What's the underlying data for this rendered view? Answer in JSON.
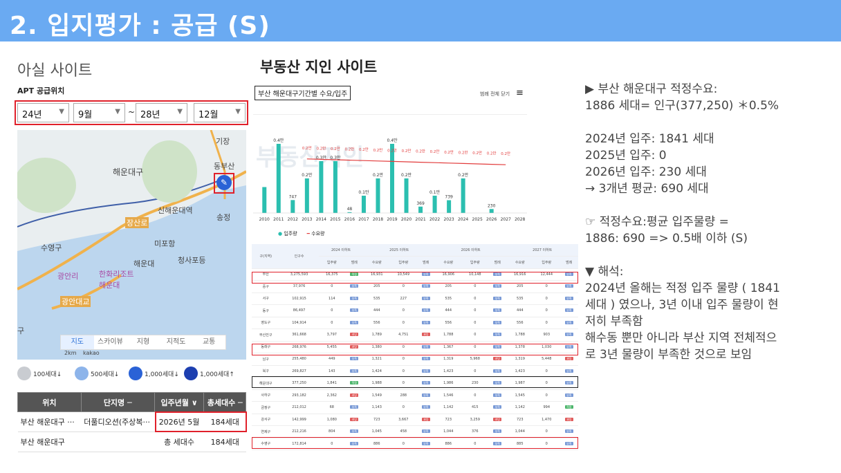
{
  "header": {
    "title": "2. 입지평가 : 공급 (S)"
  },
  "left": {
    "title": "아실 사이트",
    "sub": "APT 공급위치",
    "filters": {
      "from_year": "24년",
      "from_month": "9월",
      "sep": "~",
      "to_year": "28년",
      "to_month": "12월"
    },
    "map": {
      "labels": [
        "해운대구",
        "신해운대역",
        "장산로",
        "송정",
        "미포항",
        "수영구",
        "해운대",
        "청사포등",
        "한화리조트\n해운대",
        "광안리",
        "광안대교",
        "해운대",
        "동부산",
        "기장",
        "구"
      ],
      "tabs": [
        "지도",
        "스카이뷰",
        "지형",
        "지적도",
        "교통"
      ],
      "scale": "2km",
      "kakao": "kakao"
    },
    "legend": [
      "100세대↓",
      "500세대↓",
      "1,000세대↓",
      "1,000세대↑"
    ],
    "table": {
      "headers": [
        "위치",
        "단지명 ─",
        "입주년월 ∨",
        "총세대수 ─"
      ],
      "rows": [
        [
          "부산 해운대구 ···",
          "더풀디오션(주상복···",
          "2026년 5월",
          "184세대"
        ],
        [
          "부산 해운대구",
          "",
          "총 세대수",
          "184세대"
        ]
      ]
    }
  },
  "mid": {
    "title": "부동산 지인 사이트",
    "chart_title": "부산 해운대구기간별 수요/입주",
    "menu": "범례 전체 닫기",
    "watermark": "부동산지인",
    "chart_data": {
      "type": "bar",
      "categories": [
        "2010",
        "2011",
        "2012",
        "2013",
        "2014",
        "2015",
        "2016",
        "2017",
        "2018",
        "2019",
        "2020",
        "2021",
        "2022",
        "2023",
        "2024",
        "2025",
        "2026",
        "2027",
        "2028"
      ],
      "series": [
        {
          "name": "입주량",
          "values": [
            0.15,
            0.4,
            747,
            0.2,
            0.3,
            0.3,
            48,
            0.1,
            0.2,
            0.4,
            0.2,
            369,
            0.1,
            739,
            0.2,
            0,
            230,
            0,
            0
          ]
        },
        {
          "name": "수요량",
          "values": [
            null,
            null,
            null,
            0.2,
            0.2,
            0.2,
            0.2,
            0.2,
            0.2,
            0.2,
            0.2,
            0.2,
            0.2,
            0.2,
            0.2,
            0.2,
            0.2,
            0.2,
            null
          ]
        }
      ],
      "bar_labels": [
        "",
        "0.4만",
        "747",
        "0.2만",
        "0.3만",
        "0.3만",
        "48",
        "0.1만",
        "0.2만",
        "0.4만",
        "0.2만",
        "369",
        "0.1만",
        "739",
        "0.2만",
        "",
        "230",
        "",
        ""
      ],
      "line_labels": [
        "",
        "",
        "",
        "0.2만",
        "0.2만",
        "0.2만",
        "0.2만",
        "0.2만",
        "0.2만",
        "0.2만",
        "0.2만",
        "0.2만",
        "0.2만",
        "0.2만",
        "0.2만",
        "0.2만",
        "0.2만",
        "0.2만",
        ""
      ]
    },
    "region_table": {
      "group_headers": [
        "구(지역)",
        "인구수",
        "2024 이하트",
        "2025 이하트",
        "2026 이하트",
        "2027 이하트"
      ],
      "sub_headers": [
        "입주량",
        "범례",
        "수요량",
        "입주량",
        "범례",
        "수요량",
        "입주량",
        "범례",
        "수요량",
        "입주량",
        "범례"
      ],
      "rows": [
        [
          "부산",
          "3,275,593",
          "16,375",
          "적정",
          "16,931",
          "10,549",
          "부족",
          "16,906",
          "10,148",
          "부족",
          "16,916",
          "12,444",
          "부족"
        ],
        [
          "중구",
          "37,976",
          "0",
          "부족",
          "205",
          "0",
          "부족",
          "205",
          "0",
          "부족",
          "205",
          "0",
          "부족"
        ],
        [
          "서구",
          "102,915",
          "114",
          "부족",
          "535",
          "227",
          "부족",
          "535",
          "0",
          "부족",
          "535",
          "0",
          "부족"
        ],
        [
          "동구",
          "86,497",
          "0",
          "부족",
          "444",
          "0",
          "부족",
          "444",
          "0",
          "부족",
          "444",
          "0",
          "부족"
        ],
        [
          "영도구",
          "104,914",
          "0",
          "부족",
          "556",
          "0",
          "부족",
          "556",
          "0",
          "부족",
          "556",
          "0",
          "부족"
        ],
        [
          "부산진구",
          "361,668",
          "3,797",
          "과잉",
          "1,789",
          "4,751",
          "과잉",
          "1,788",
          "0",
          "부족",
          "1,788",
          "903",
          "부족"
        ],
        [
          "동래구",
          "268,976",
          "5,455",
          "과잉",
          "1,380",
          "0",
          "부족",
          "1,367",
          "0",
          "부족",
          "1,378",
          "1,030",
          "부족"
        ],
        [
          "남구",
          "255,480",
          "449",
          "부족",
          "1,321",
          "0",
          "부족",
          "1,319",
          "5,968",
          "과잉",
          "1,319",
          "5,448",
          "과잉"
        ],
        [
          "북구",
          "269,827",
          "143",
          "부족",
          "1,424",
          "0",
          "부족",
          "1,423",
          "0",
          "부족",
          "1,423",
          "0",
          "부족"
        ],
        [
          "해운대구",
          "377,250",
          "1,841",
          "적정",
          "1,988",
          "0",
          "부족",
          "1,986",
          "230",
          "부족",
          "1,987",
          "0",
          "부족"
        ],
        [
          "사하구",
          "293,182",
          "2,362",
          "과잉",
          "1,549",
          "288",
          "부족",
          "1,546",
          "0",
          "부족",
          "1,545",
          "0",
          "부족"
        ],
        [
          "금정구",
          "212,012",
          "68",
          "부족",
          "1,143",
          "0",
          "부족",
          "1,142",
          "415",
          "부족",
          "1,142",
          "994",
          "적정"
        ],
        [
          "강서구",
          "142,999",
          "1,080",
          "과잉",
          "723",
          "3,667",
          "과잉",
          "723",
          "3,259",
          "과잉",
          "723",
          "1,470",
          "과잉"
        ],
        [
          "연제구",
          "212,216",
          "804",
          "부족",
          "1,045",
          "458",
          "부족",
          "1,044",
          "376",
          "부족",
          "1,044",
          "0",
          "부족"
        ],
        [
          "수영구",
          "172,814",
          "0",
          "부족",
          "886",
          "0",
          "부족",
          "886",
          "0",
          "부족",
          "885",
          "0",
          "부족"
        ]
      ]
    }
  },
  "right": {
    "lines": [
      "▶ 부산 해운대구 적정수요:",
      "1886 세대= 인구(377,250) ＊0.5%",
      "",
      "2024년 입주: 1841 세대",
      "2025년 입주: 0",
      "2026년 입주: 230 세대",
      "→ 3개년 평균: 690 세대",
      "",
      "☞ 적정수요:평균 입주물량 =",
      "1886: 690 => 0.5배 이하 (S)",
      "",
      "▼ 해석:",
      "2024년 올해는 적정 입주 물량 ( 1841",
      "세대 ) 였으나, 3년 이내 입주 물량이 현",
      "저히 부족함",
      "해수동 뿐만 아니라 부산 지역 전체적으",
      "로 3년 물량이 부족한 것으로 보임"
    ]
  },
  "colors": {
    "header": "#6aaaf2",
    "bar": "#2bbfb0",
    "line": "#e23b3b",
    "red_box": "#e0202a"
  }
}
